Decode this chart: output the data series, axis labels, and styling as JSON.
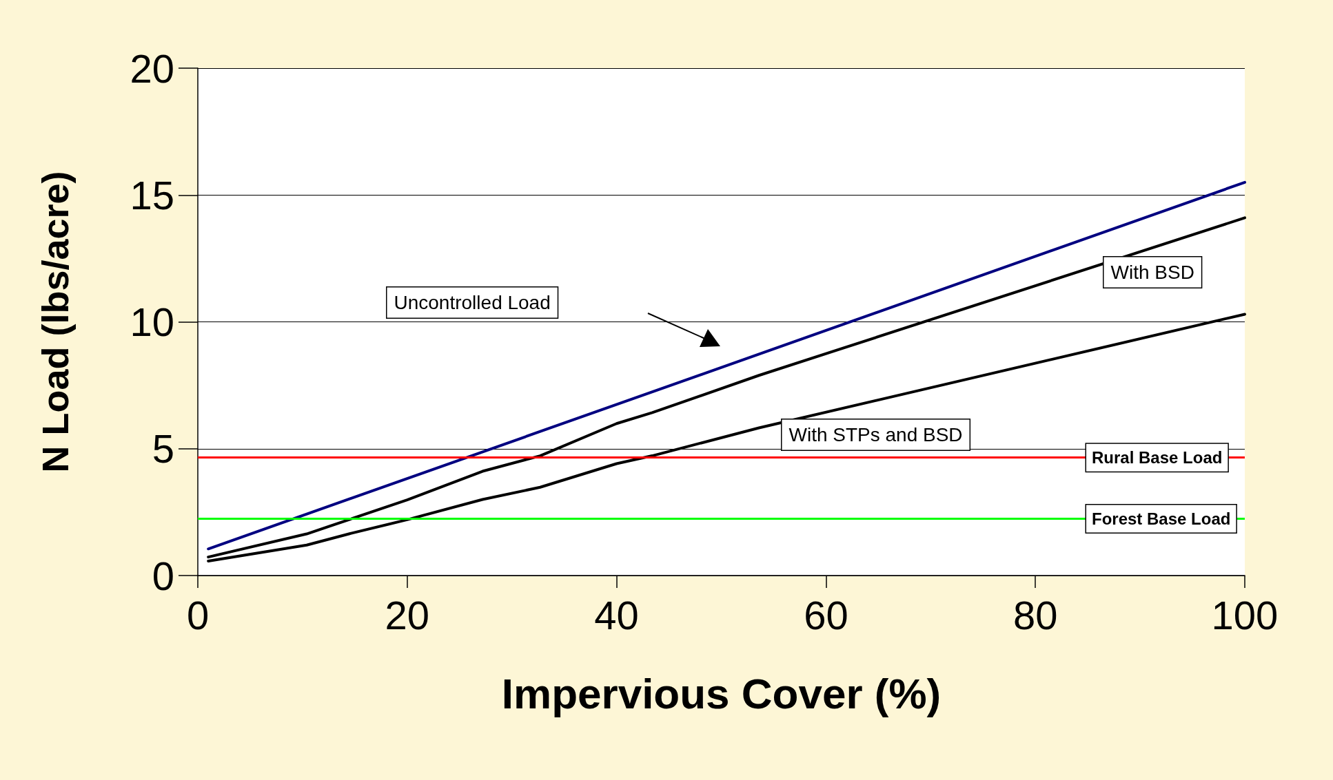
{
  "chart_data": {
    "type": "line",
    "xlabel": "Impervious Cover (%)",
    "ylabel": "N Load (lbs/acre)",
    "xlim": [
      0,
      100
    ],
    "xticks": [
      0,
      20,
      40,
      60,
      80,
      100
    ],
    "ylim": [
      0,
      20
    ],
    "yticks": [
      0,
      5,
      10,
      15,
      20
    ],
    "grid": "y",
    "marker": "none",
    "line_style": "solid",
    "series": [
      {
        "color": "#000080",
        "x": [
          1,
          100
        ],
        "values": [
          1.05,
          15.5
        ]
      },
      {
        "color": "#000000",
        "x": [
          1,
          10.4,
          20,
          27.2,
          32.7,
          40,
          43.4,
          53.6,
          100
        ],
        "values": [
          0.73,
          1.64,
          2.98,
          4.11,
          4.72,
          5.99,
          6.42,
          7.89,
          14.1
        ]
      },
      {
        "color": "#000000",
        "x": [
          1,
          10.4,
          14.5,
          20,
          27.2,
          32.7,
          40,
          43.4,
          53.6,
          100
        ],
        "values": [
          0.57,
          1.2,
          1.65,
          2.2,
          3.0,
          3.48,
          4.41,
          4.72,
          5.82,
          10.3
        ]
      }
    ],
    "ref_lines": [
      {
        "axis": "y",
        "value": 4.65,
        "label": "Rural Base Load",
        "color": "#ff0000"
      },
      {
        "axis": "y",
        "value": 2.24,
        "label": "Forest Base Load",
        "color": "#00ff00"
      }
    ],
    "annotations": [
      "Uncontrolled Load",
      "With BSD",
      "With STPs and BSD"
    ]
  }
}
